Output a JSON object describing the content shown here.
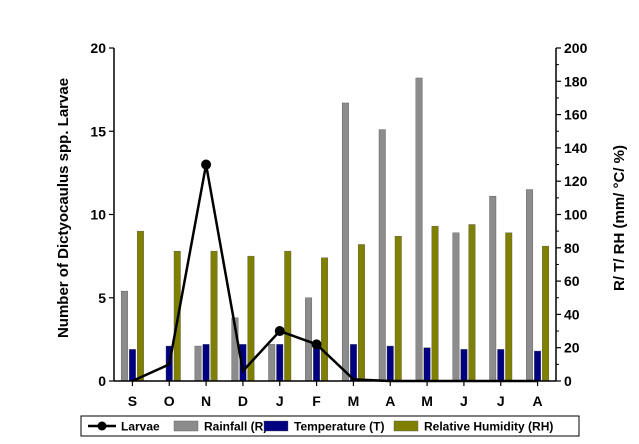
{
  "chart_data": {
    "type": "bar",
    "categories": [
      "S",
      "O",
      "N",
      "D",
      "J",
      "F",
      "M",
      "A",
      "M",
      "J",
      "J",
      "A"
    ],
    "series": [
      {
        "name": "Larvae",
        "kind": "line",
        "axis": "left",
        "color": "#000000",
        "values": [
          0,
          1,
          13,
          0.6,
          3,
          2.2,
          0.1,
          0,
          0,
          0,
          0,
          0
        ]
      },
      {
        "name": "Rainfall (R)",
        "kind": "bar",
        "axis": "right",
        "color": "#8c8c8c",
        "values": [
          54,
          0,
          21,
          38,
          22,
          50,
          167,
          151,
          182,
          89,
          111,
          115
        ]
      },
      {
        "name": "Temperature (T)",
        "kind": "bar",
        "axis": "right",
        "color": "#000080",
        "values": [
          19,
          21,
          22,
          22,
          22,
          23,
          22,
          21,
          20,
          19,
          19,
          18
        ]
      },
      {
        "name": "Relative Humidity (RH)",
        "kind": "bar",
        "axis": "right",
        "color": "#808000",
        "values": [
          90,
          78,
          78,
          75,
          78,
          74,
          82,
          87,
          93,
          94,
          89,
          81
        ]
      }
    ],
    "ylabel": "Number of Dictyocaulus spp. Larvae",
    "ylabel_right": "R/ T/ RH (mm/ °C/ %)",
    "ylim": [
      0,
      20
    ],
    "ylim_right": [
      0,
      200
    ],
    "yticks": [
      "0",
      "5",
      "10",
      "15",
      "20"
    ],
    "yticks_right": [
      "0",
      "20",
      "40",
      "60",
      "80",
      "100",
      "120",
      "140",
      "160",
      "180",
      "200"
    ],
    "legend_position": "bottom"
  }
}
